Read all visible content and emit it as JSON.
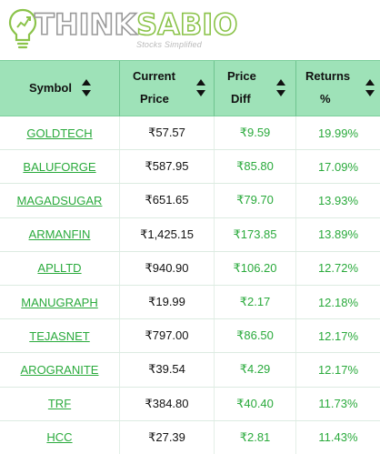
{
  "brand": {
    "logo_prefix": "THINK",
    "logo_suffix": "SABIO",
    "tagline": "Stocks Simplified",
    "logo_icon": "lightbulb-icon",
    "accent_green": "#8bc34a"
  },
  "table": {
    "headers": {
      "symbol": "Symbol",
      "current_line1": "Current",
      "current_line2": "Price",
      "diff_line1": "Price",
      "diff_line2": "Diff",
      "returns_line1": "Returns",
      "returns_line2": "%"
    },
    "sort_icon": "sort-arrows-icon",
    "header_bg": "#9ee2b8",
    "link_color": "#2aaa3c",
    "rows": [
      {
        "symbol": "GOLDTECH",
        "price": "₹57.57",
        "diff": "₹9.59",
        "returns": "19.99%"
      },
      {
        "symbol": "BALUFORGE",
        "price": "₹587.95",
        "diff": "₹85.80",
        "returns": "17.09%"
      },
      {
        "symbol": "MAGADSUGAR",
        "price": "₹651.65",
        "diff": "₹79.70",
        "returns": "13.93%"
      },
      {
        "symbol": "ARMANFIN",
        "price": "₹1,425.15",
        "diff": "₹173.85",
        "returns": "13.89%"
      },
      {
        "symbol": "APLLTD",
        "price": "₹940.90",
        "diff": "₹106.20",
        "returns": "12.72%"
      },
      {
        "symbol": "MANUGRAPH",
        "price": "₹19.99",
        "diff": "₹2.17",
        "returns": "12.18%"
      },
      {
        "symbol": "TEJASNET",
        "price": "₹797.00",
        "diff": "₹86.50",
        "returns": "12.17%"
      },
      {
        "symbol": "AROGRANITE",
        "price": "₹39.54",
        "diff": "₹4.29",
        "returns": "12.17%"
      },
      {
        "symbol": "TRF",
        "price": "₹384.80",
        "diff": "₹40.40",
        "returns": "11.73%"
      },
      {
        "symbol": "HCC",
        "price": "₹27.39",
        "diff": "₹2.81",
        "returns": "11.43%"
      }
    ]
  }
}
